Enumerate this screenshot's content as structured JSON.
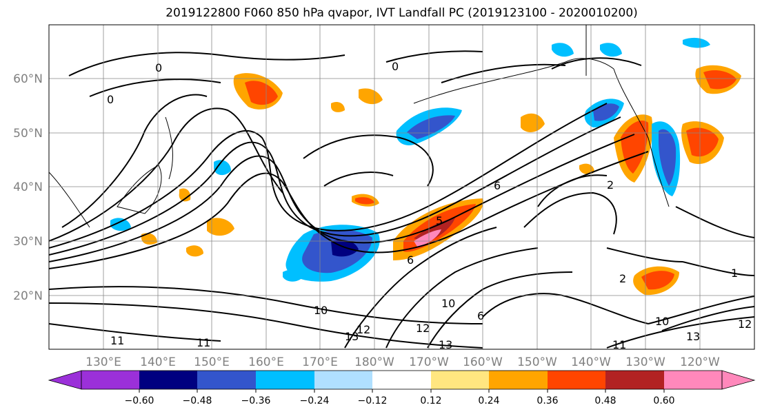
{
  "title": "2019122800 F060 850 hPa qvapor, IVT Landfall PC (2019123100 - 2020010200)",
  "lat_labels": [
    "60°N",
    "50°N",
    "40°N",
    "30°N",
    "20°N"
  ],
  "lon_labels": [
    "130°E",
    "140°E",
    "150°E",
    "160°E",
    "170°E",
    "180°W",
    "170°W",
    "160°W",
    "150°W",
    "140°W",
    "130°W",
    "120°W"
  ],
  "colorbar": {
    "ticks": [
      "−0.60",
      "−0.48",
      "−0.36",
      "−0.24",
      "−0.12",
      "0.12",
      "0.24",
      "0.36",
      "0.48",
      "0.60"
    ],
    "colors": [
      "#9b30d9",
      "#000080",
      "#3355cc",
      "#00bfff",
      "#b0e0ff",
      "#ffffff",
      "#ffe680",
      "#ffa500",
      "#ff4500",
      "#b22222",
      "#ff88bb"
    ]
  },
  "contour_labels": [
    "0",
    "0",
    "0",
    "6",
    "5",
    "6",
    "10",
    "11",
    "12",
    "13",
    "12",
    "13",
    "10",
    "11",
    "12",
    "13",
    "2",
    "1",
    "2",
    "10",
    "6",
    "11"
  ]
}
